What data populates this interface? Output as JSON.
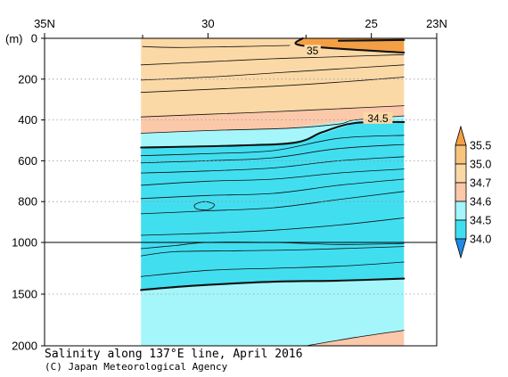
{
  "chart_data": {
    "type": "contour",
    "title": "Salinity along 137°E line, April 2016",
    "credit": "(C) Japan Meteorological Agency",
    "y_unit": "(m)",
    "x_axis": {
      "range_lat_N": [
        35,
        23
      ],
      "ticks": [
        {
          "lat": 35,
          "label": "35N"
        },
        {
          "lat": 30,
          "label": "30"
        },
        {
          "lat": 25,
          "label": "25"
        },
        {
          "lat": 23,
          "label": "23N"
        }
      ],
      "minor_ticks": [
        32,
        27
      ]
    },
    "y_axis": {
      "range_m": [
        0,
        2000
      ],
      "break_at_m": 1000,
      "ticks": [
        {
          "depth": 0,
          "label": "0"
        },
        {
          "depth": 200,
          "label": "200"
        },
        {
          "depth": 400,
          "label": "400"
        },
        {
          "depth": 600,
          "label": "600"
        },
        {
          "depth": 800,
          "label": "800"
        },
        {
          "depth": 1000,
          "label": "1000"
        },
        {
          "depth": 1500,
          "label": "1500"
        },
        {
          "depth": 2000,
          "label": "2000"
        }
      ]
    },
    "data_coverage_lat": [
      32.05,
      24.0
    ],
    "legend": {
      "levels": [
        "35.5",
        "35.0",
        "34.7",
        "34.6",
        "34.5",
        "34.0"
      ],
      "band_colors": [
        "#f3a044",
        "#f8c47c",
        "#fbd9a6",
        "#fcc8aa",
        "#a4f6fa",
        "#41def0",
        "#2389e4",
        "#e8902a"
      ]
    },
    "fill_colors": {
      "s_34_7_35_0": "#fbd9a6",
      "s_34_6_34_7": "#fcc8aa",
      "s_34_5_34_6": "#a4f6fa",
      "s_34_0_34_5": "#41def0",
      "s_35_0_35_5": "#f3a044"
    },
    "regions": [
      {
        "level": "s_34_7_35_0",
        "points": [
          [
            32.05,
            0
          ],
          [
            24,
            0
          ],
          [
            24,
            330
          ],
          [
            28,
            360
          ],
          [
            32.05,
            385
          ]
        ]
      },
      {
        "level": "s_34_6_34_7",
        "points": [
          [
            32.05,
            385
          ],
          [
            28,
            360
          ],
          [
            24,
            330
          ],
          [
            24,
            380
          ],
          [
            25.5,
            400
          ],
          [
            27.5,
            440
          ],
          [
            32.05,
            465
          ]
        ]
      },
      {
        "level": "s_34_5_34_6",
        "points": [
          [
            32.05,
            465
          ],
          [
            27.5,
            440
          ],
          [
            25.5,
            400
          ],
          [
            24,
            380
          ],
          [
            24,
            410
          ],
          [
            25.5,
            415
          ],
          [
            27.3,
            510
          ],
          [
            29,
            525
          ],
          [
            32.05,
            535
          ]
        ]
      },
      {
        "level": "s_34_0_34_5",
        "points": [
          [
            32.05,
            535
          ],
          [
            29,
            525
          ],
          [
            27.3,
            510
          ],
          [
            25.5,
            415
          ],
          [
            24,
            410
          ],
          [
            24,
            1350
          ],
          [
            28,
            1380
          ],
          [
            30.5,
            1420
          ],
          [
            32.05,
            1460
          ]
        ]
      },
      {
        "level": "s_34_5_34_6",
        "points": [
          [
            32.05,
            1460
          ],
          [
            30.5,
            1420
          ],
          [
            28,
            1380
          ],
          [
            24,
            1350
          ],
          [
            24,
            1850
          ],
          [
            25.5,
            1920
          ],
          [
            27,
            2000
          ],
          [
            32.05,
            2000
          ]
        ]
      },
      {
        "level": "s_34_6_34_7",
        "points": [
          [
            27,
            2000
          ],
          [
            25.5,
            1920
          ],
          [
            24,
            1850
          ],
          [
            24,
            2000
          ]
        ]
      },
      {
        "level": "s_35_0_35_5",
        "points": [
          [
            27.1,
            0
          ],
          [
            27.3,
            28
          ],
          [
            26.5,
            45
          ],
          [
            24,
            70
          ],
          [
            24,
            0
          ]
        ]
      }
    ],
    "contours": [
      {
        "value": "35.0",
        "label": "35",
        "label_at": [
          26.8,
          60
        ],
        "bold": true,
        "points": [
          [
            27.1,
            0
          ],
          [
            27.3,
            28
          ],
          [
            26.5,
            45
          ],
          [
            24,
            70
          ]
        ]
      },
      {
        "value": "35.5",
        "bold": true,
        "points": [
          [
            26,
            12
          ],
          [
            24,
            8
          ]
        ]
      },
      {
        "value": "34.9",
        "points": [
          [
            32,
            40
          ],
          [
            31,
            45
          ],
          [
            29,
            40
          ],
          [
            27.5,
            35
          ]
        ]
      },
      {
        "value": "34.9",
        "points": [
          [
            32.05,
            130
          ],
          [
            30,
            115
          ],
          [
            28,
            100
          ],
          [
            26,
            90
          ],
          [
            24,
            80
          ]
        ]
      },
      {
        "value": "34.8",
        "points": [
          [
            32.05,
            205
          ],
          [
            30,
            190
          ],
          [
            28,
            170
          ],
          [
            26,
            150
          ],
          [
            24,
            130
          ]
        ]
      },
      {
        "value": "34.8",
        "points": [
          [
            32.05,
            265
          ],
          [
            30,
            250
          ],
          [
            28,
            235
          ],
          [
            26,
            215
          ],
          [
            24,
            190
          ]
        ]
      },
      {
        "value": "34.7",
        "points": [
          [
            32.05,
            385
          ],
          [
            30,
            372
          ],
          [
            28,
            360
          ],
          [
            26,
            345
          ],
          [
            24,
            330
          ]
        ]
      },
      {
        "value": "34.6",
        "points": [
          [
            32.05,
            465
          ],
          [
            30,
            452
          ],
          [
            27.5,
            440
          ],
          [
            26,
            420
          ],
          [
            25.5,
            400
          ],
          [
            24,
            380
          ]
        ]
      },
      {
        "value": "34.5",
        "label": "34.5",
        "label_at": [
          24.8,
          390
        ],
        "bold": true,
        "points": [
          [
            32.05,
            535
          ],
          [
            29,
            525
          ],
          [
            27.3,
            510
          ],
          [
            26.5,
            460
          ],
          [
            25.5,
            415
          ],
          [
            24,
            410
          ]
        ]
      },
      {
        "value": "34.4",
        "points": [
          [
            32.05,
            575
          ],
          [
            30,
            565
          ],
          [
            28,
            550
          ],
          [
            26,
            490
          ],
          [
            24,
            475
          ]
        ]
      },
      {
        "value": "34.35",
        "points": [
          [
            32.05,
            610
          ],
          [
            30,
            600
          ],
          [
            28,
            585
          ],
          [
            26,
            540
          ],
          [
            24,
            520
          ]
        ]
      },
      {
        "value": "34.3",
        "points": [
          [
            32.05,
            660
          ],
          [
            30,
            650
          ],
          [
            28,
            635
          ],
          [
            26,
            600
          ],
          [
            24,
            580
          ]
        ]
      },
      {
        "value": "34.25",
        "points": [
          [
            32.05,
            720
          ],
          [
            30,
            700
          ],
          [
            28,
            690
          ],
          [
            26,
            660
          ],
          [
            24,
            640
          ]
        ]
      },
      {
        "value": "34.2",
        "points": [
          [
            32.05,
            785
          ],
          [
            30,
            770
          ],
          [
            28,
            760
          ],
          [
            26,
            720
          ],
          [
            24,
            690
          ]
        ]
      },
      {
        "value": "34.2",
        "closed": true,
        "points": [
          [
            30.1,
            800
          ],
          [
            29.8,
            815
          ],
          [
            30.0,
            840
          ],
          [
            30.35,
            835
          ],
          [
            30.4,
            815
          ]
        ]
      },
      {
        "value": "34.15",
        "points": [
          [
            32.05,
            860
          ],
          [
            30,
            845
          ],
          [
            28,
            830
          ],
          [
            26,
            790
          ],
          [
            24,
            750
          ]
        ]
      },
      {
        "value": "34.1",
        "points": [
          [
            32.05,
            965
          ],
          [
            30,
            955
          ],
          [
            28,
            940
          ],
          [
            26,
            915
          ],
          [
            24,
            880
          ]
        ]
      },
      {
        "value": "34.1",
        "points": [
          [
            32.05,
            1060
          ],
          [
            31,
            1030
          ],
          [
            30,
            1000
          ],
          [
            28,
            1000
          ],
          [
            26,
            1020
          ],
          [
            24,
            1010
          ]
        ]
      },
      {
        "value": "34.2",
        "points": [
          [
            32.05,
            1130
          ],
          [
            31,
            1090
          ],
          [
            29,
            1080
          ],
          [
            27,
            1070
          ],
          [
            24,
            1040
          ]
        ]
      },
      {
        "value": "34.3",
        "points": [
          [
            32.05,
            1330
          ],
          [
            30,
            1270
          ],
          [
            28,
            1250
          ],
          [
            26,
            1230
          ],
          [
            24,
            1190
          ]
        ]
      },
      {
        "value": "34.5",
        "bold": true,
        "points": [
          [
            32.05,
            1460
          ],
          [
            30.5,
            1420
          ],
          [
            28,
            1380
          ],
          [
            26,
            1370
          ],
          [
            24,
            1350
          ]
        ]
      },
      {
        "value": "34.6",
        "points": [
          [
            27,
            2000
          ],
          [
            25.5,
            1920
          ],
          [
            24,
            1850
          ]
        ]
      }
    ]
  }
}
